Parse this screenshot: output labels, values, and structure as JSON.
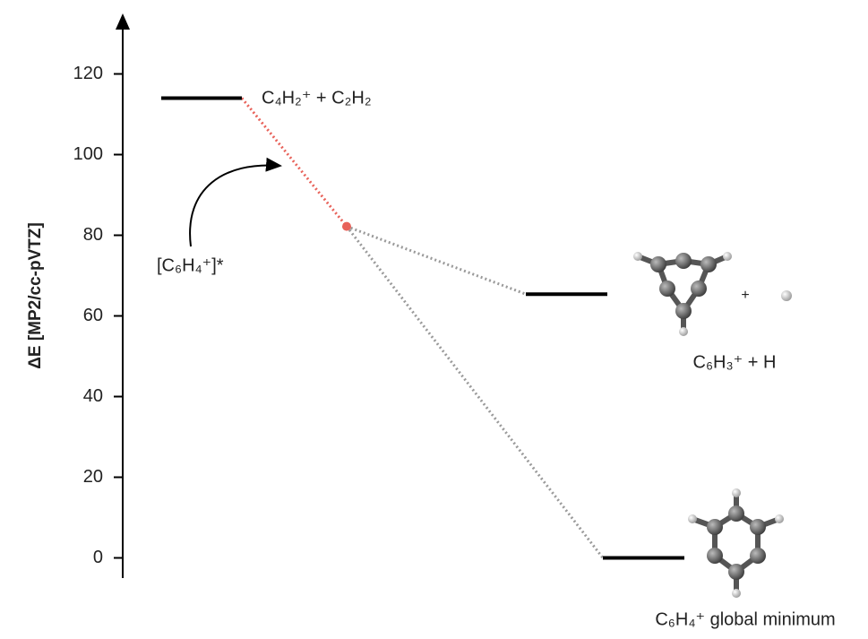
{
  "chart_data": {
    "type": "energy-level",
    "ylabel": "ΔE [MP2/cc-pVTZ]",
    "ylim": [
      -5,
      135
    ],
    "yticks": [
      0,
      20,
      40,
      60,
      80,
      100,
      120
    ],
    "levels": [
      {
        "label": "C₄H₂⁺ + C₂H₂",
        "value": 114
      },
      {
        "label": "C₆H₃⁺ + H",
        "value": 65.4
      },
      {
        "label": "C₆H₄⁺ global minimum",
        "value": 0
      }
    ],
    "intermediate": {
      "label": "[C₆H₄⁺]*",
      "value": 82.2,
      "color": "#e8625a"
    },
    "annotations": [
      "+"
    ],
    "level_color": "#000000",
    "connector_color": "#9a9a9a"
  }
}
